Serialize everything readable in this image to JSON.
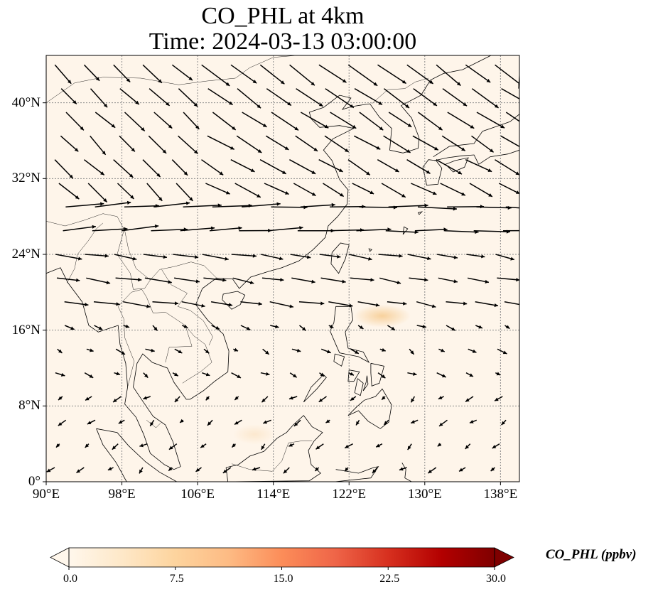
{
  "title": {
    "line1": "CO_PHL at 4km",
    "line2": "Time: 2024-03-13 03:00:00"
  },
  "map": {
    "projection": "PlateCarree",
    "lon_range": [
      90,
      140
    ],
    "lat_range": [
      0,
      45
    ],
    "gridlines": true,
    "coastlines": true,
    "borders": true,
    "field_variable": "CO_PHL",
    "field_note": "near-zero concentration everywhere; faint plume east of Luzon",
    "vector_field": "wind",
    "x_ticks": [
      "90°E",
      "98°E",
      "106°E",
      "114°E",
      "122°E",
      "130°E",
      "138°E"
    ],
    "x_tick_values": [
      90,
      98,
      106,
      114,
      122,
      130,
      138
    ],
    "y_ticks": [
      "0°",
      "8°N",
      "16°N",
      "24°N",
      "32°N",
      "40°N"
    ],
    "y_tick_values": [
      0,
      8,
      16,
      24,
      32,
      40
    ]
  },
  "colorbar": {
    "label": "CO_PHL (ppbv)",
    "colormap": "OrRd",
    "range": [
      0,
      30
    ],
    "ticks": [
      "0.0",
      "7.5",
      "15.0",
      "22.5",
      "30.0"
    ],
    "tick_values": [
      0,
      7.5,
      15,
      22.5,
      30
    ],
    "extend": "both",
    "colors": [
      "#fff7ec",
      "#fee8c8",
      "#fdd49e",
      "#fdbb84",
      "#fc8d59",
      "#ef6548",
      "#d7301f",
      "#b30000",
      "#7f0000"
    ]
  },
  "colors": {
    "background_field": "#fef5ea",
    "plume": "#f7cf98",
    "arrow": "#000000",
    "coast": "#000000",
    "grid": "#8a8a8a"
  }
}
